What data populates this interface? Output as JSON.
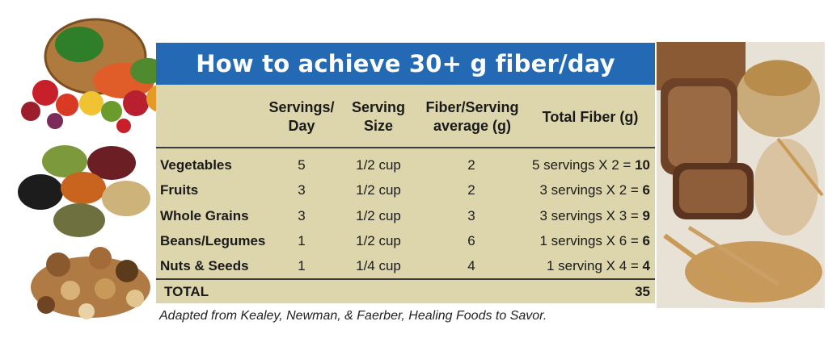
{
  "title": "How to achieve 30+ g fiber/day",
  "columns": [
    {
      "line1": "Servings/",
      "line2": "Day"
    },
    {
      "line1": "Serving",
      "line2": "Size"
    },
    {
      "line1": "Fiber/Serving",
      "line2": "average (g)"
    },
    {
      "line1": "Total Fiber (g)",
      "line2": ""
    }
  ],
  "rows": [
    {
      "label": "Vegetables",
      "servings": "5",
      "size": "1/2 cup",
      "fiber": "2",
      "total_text": "5 servings  X 2 = ",
      "total": "10"
    },
    {
      "label": "Fruits",
      "servings": "3",
      "size": "1/2 cup",
      "fiber": "2",
      "total_text": "3 servings  X 2 = ",
      "total": "6"
    },
    {
      "label": "Whole Grains",
      "servings": "3",
      "size": "1/2 cup",
      "fiber": "3",
      "total_text": "3 servings  X 3 = ",
      "total": "9"
    },
    {
      "label": "Beans/Legumes",
      "servings": "1",
      "size": "1/2 cup",
      "fiber": "6",
      "total_text": "1 servings  X 6 = ",
      "total": "6"
    },
    {
      "label": "Nuts & Seeds",
      "servings": "1",
      "size": "1/4 cup",
      "fiber": "4",
      "total_text": "1 serving  X 4 = ",
      "total": "4"
    }
  ],
  "total_label": "TOTAL",
  "total_value": "35",
  "caption": "Adapted from Kealey, Newman, & Faerber,  Healing Foods to Savor.",
  "colors": {
    "banner": "#2369b4",
    "table_bg": "#ddd6ad"
  },
  "images": [
    "vegetable-basket-icon",
    "legumes-icon",
    "nuts-icon",
    "bread-and-grains-icon"
  ]
}
